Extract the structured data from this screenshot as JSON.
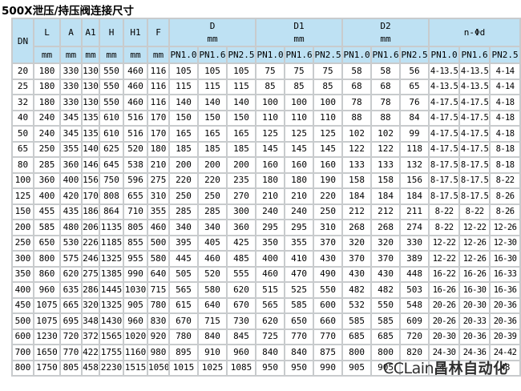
{
  "title": "500X泄压/持压阀连接尺寸",
  "table": {
    "header": {
      "dn": "DN",
      "cols": [
        {
          "label": "L",
          "unit": "mm"
        },
        {
          "label": "A",
          "unit": "mm"
        },
        {
          "label": "A1",
          "unit": "mm"
        },
        {
          "label": "H",
          "unit": "mm"
        },
        {
          "label": "H1",
          "unit": "mm"
        },
        {
          "label": "F",
          "unit": "mm"
        }
      ],
      "groups": [
        {
          "label": "D",
          "unit": "mm"
        },
        {
          "label": "D1",
          "unit": "mm"
        },
        {
          "label": "D2",
          "unit": "mm"
        },
        {
          "label": "n-Φd",
          "unit": ""
        }
      ],
      "pn": [
        "PN1.0",
        "PN1.6",
        "PN2.5"
      ]
    },
    "rows": [
      [
        "20",
        "180",
        "330",
        "130",
        "550",
        "460",
        "116",
        "105",
        "105",
        "105",
        "75",
        "75",
        "75",
        "58",
        "58",
        "56",
        "4-13.5",
        "4-13.5",
        "4-14"
      ],
      [
        "25",
        "180",
        "330",
        "130",
        "550",
        "460",
        "116",
        "115",
        "115",
        "115",
        "85",
        "85",
        "85",
        "68",
        "68",
        "65",
        "4-13.5",
        "4-13.5",
        "4-14"
      ],
      [
        "32",
        "180",
        "330",
        "130",
        "550",
        "460",
        "116",
        "140",
        "140",
        "140",
        "100",
        "100",
        "100",
        "78",
        "78",
        "76",
        "4-17.5",
        "4-17.5",
        "4-18"
      ],
      [
        "40",
        "240",
        "345",
        "135",
        "610",
        "516",
        "170",
        "150",
        "150",
        "150",
        "110",
        "110",
        "110",
        "88",
        "88",
        "84",
        "4-17.5",
        "4-17.5",
        "4-18"
      ],
      [
        "50",
        "240",
        "345",
        "135",
        "610",
        "516",
        "170",
        "165",
        "165",
        "165",
        "125",
        "125",
        "125",
        "102",
        "102",
        "99",
        "4-17.5",
        "4-17.5",
        "4-18"
      ],
      [
        "65",
        "250",
        "355",
        "140",
        "625",
        "520",
        "180",
        "185",
        "185",
        "185",
        "145",
        "145",
        "145",
        "122",
        "122",
        "118",
        "4-17.5",
        "4-17.5",
        "8-18"
      ],
      [
        "80",
        "285",
        "360",
        "146",
        "645",
        "538",
        "210",
        "200",
        "200",
        "200",
        "160",
        "160",
        "160",
        "133",
        "133",
        "132",
        "8-17.5",
        "8-17.5",
        "8-18"
      ],
      [
        "100",
        "360",
        "400",
        "156",
        "750",
        "596",
        "275",
        "220",
        "220",
        "235",
        "180",
        "180",
        "190",
        "158",
        "158",
        "156",
        "8-17.5",
        "8-17.5",
        "8-22"
      ],
      [
        "125",
        "400",
        "420",
        "170",
        "808",
        "655",
        "310",
        "250",
        "250",
        "270",
        "210",
        "210",
        "220",
        "184",
        "184",
        "184",
        "8-17.5",
        "8-17.5",
        "8-26"
      ],
      [
        "150",
        "455",
        "435",
        "186",
        "864",
        "710",
        "355",
        "285",
        "285",
        "300",
        "240",
        "240",
        "250",
        "212",
        "212",
        "211",
        "8-22",
        "8-22",
        "8-26"
      ],
      [
        "200",
        "585",
        "480",
        "206",
        "1135",
        "805",
        "460",
        "340",
        "340",
        "360",
        "295",
        "295",
        "310",
        "268",
        "268",
        "274",
        "8-22",
        "12-22",
        "12-26"
      ],
      [
        "250",
        "650",
        "530",
        "226",
        "1185",
        "855",
        "500",
        "395",
        "405",
        "425",
        "350",
        "355",
        "370",
        "320",
        "320",
        "330",
        "12-22",
        "12-26",
        "12-30"
      ],
      [
        "300",
        "800",
        "575",
        "246",
        "1325",
        "955",
        "580",
        "445",
        "460",
        "485",
        "400",
        "410",
        "430",
        "370",
        "370",
        "389",
        "12-22",
        "12-26",
        "16-30"
      ],
      [
        "350",
        "860",
        "620",
        "275",
        "1385",
        "990",
        "640",
        "505",
        "520",
        "555",
        "460",
        "470",
        "490",
        "430",
        "430",
        "448",
        "16-22",
        "16-26",
        "16-33"
      ],
      [
        "400",
        "960",
        "635",
        "286",
        "1445",
        "1030",
        "715",
        "565",
        "580",
        "620",
        "515",
        "525",
        "550",
        "482",
        "482",
        "503",
        "16-26",
        "16-30",
        "16-36"
      ],
      [
        "450",
        "1075",
        "665",
        "320",
        "1325",
        "905",
        "780",
        "615",
        "640",
        "670",
        "565",
        "585",
        "600",
        "532",
        "550",
        "548",
        "20-26",
        "20-30",
        "20-36"
      ],
      [
        "500",
        "1075",
        "695",
        "348",
        "1430",
        "960",
        "830",
        "670",
        "715",
        "730",
        "620",
        "650",
        "660",
        "585",
        "585",
        "609",
        "20-26",
        "20-33",
        "20-36"
      ],
      [
        "600",
        "1230",
        "720",
        "372",
        "1565",
        "1020",
        "920",
        "780",
        "840",
        "845",
        "725",
        "770",
        "770",
        "685",
        "685",
        "720",
        "20-30",
        "20-36",
        "20-39"
      ],
      [
        "700",
        "1650",
        "770",
        "422",
        "1755",
        "1160",
        "980",
        "895",
        "910",
        "960",
        "840",
        "840",
        "875",
        "800",
        "800",
        "820",
        "24-30",
        "24-36",
        "24-42"
      ],
      [
        "800",
        "1750",
        "805",
        "458",
        "2230",
        "1515",
        "1050",
        "1015",
        "1025",
        "1085",
        "950",
        "950",
        "990",
        "905",
        "905",
        "",
        "4-",
        "",
        "48"
      ]
    ]
  },
  "watermark": {
    "latin": "CCLain",
    "cjk": "昌林自动化"
  }
}
